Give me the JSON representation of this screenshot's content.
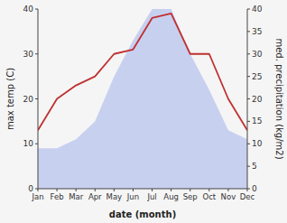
{
  "chart_data": {
    "type": "line",
    "categories": [
      "Jan",
      "Feb",
      "Mar",
      "Apr",
      "May",
      "Jun",
      "Jul",
      "Aug",
      "Sep",
      "Oct",
      "Nov",
      "Dec"
    ],
    "series": [
      {
        "type": "line",
        "color": "#c03030",
        "values": [
          13,
          20,
          23,
          25,
          30,
          31,
          38,
          39,
          30,
          30,
          20,
          13
        ]
      },
      {
        "type": "area",
        "color": "#c8d0f0",
        "axis": "y2",
        "values": [
          9,
          9,
          11,
          15,
          25,
          33,
          40,
          40,
          30,
          22,
          13,
          11
        ]
      }
    ],
    "xlabel": "date (month)",
    "ylabel": "max temp (C)",
    "y2label": "med. precipitation (kg/m2)",
    "ylim": [
      0,
      40
    ],
    "yticks": [
      0,
      10,
      20,
      30,
      40
    ],
    "y2lim": [
      0,
      40
    ],
    "y2ticks": [
      0,
      5,
      10,
      15,
      20,
      25,
      30,
      35,
      40
    ],
    "grid": false
  }
}
